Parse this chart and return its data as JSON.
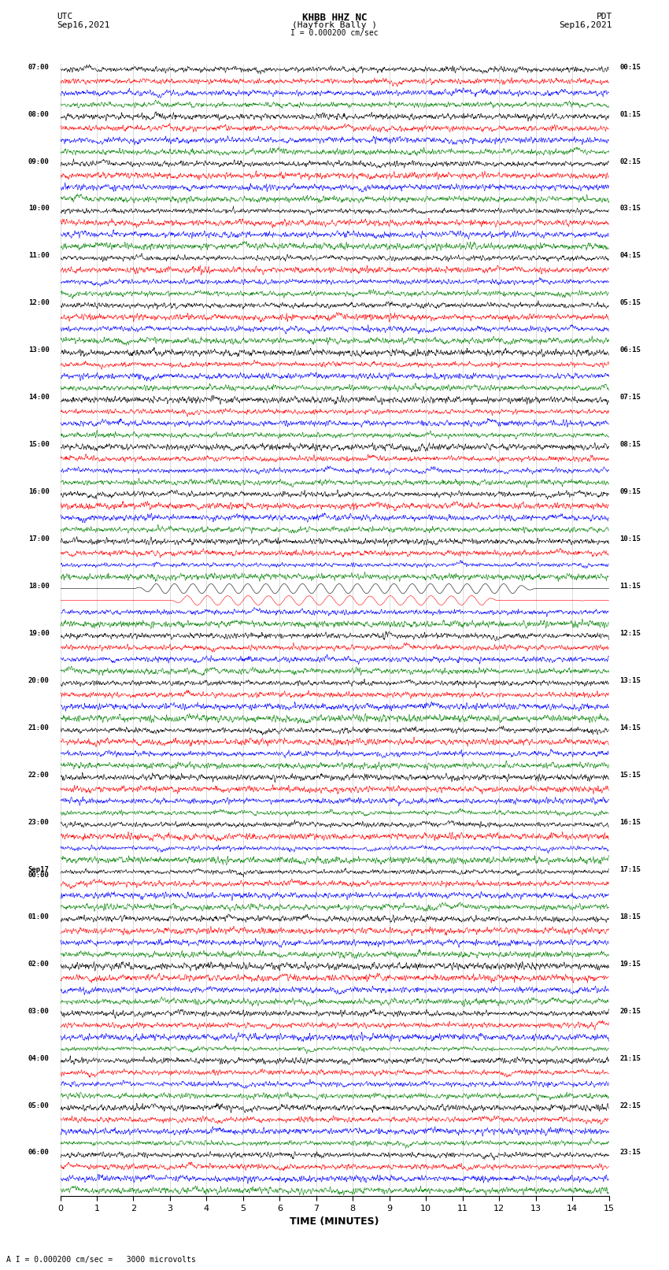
{
  "title_line1": "KHBB HHZ NC",
  "title_line2": "(Hayfork Bally )",
  "scale_label": "I = 0.000200 cm/sec",
  "left_timezone": "UTC",
  "left_date": "Sep16,2021",
  "right_timezone": "PDT",
  "right_date": "Sep16,2021",
  "bottom_label": "TIME (MINUTES)",
  "bottom_note": "A I = 0.000200 cm/sec =   3000 microvolts",
  "xlim": [
    0,
    15
  ],
  "xticks": [
    0,
    1,
    2,
    3,
    4,
    5,
    6,
    7,
    8,
    9,
    10,
    11,
    12,
    13,
    14,
    15
  ],
  "figure_width": 8.5,
  "figure_height": 16.13,
  "dpi": 100,
  "bg_color": "#ffffff",
  "trace_colors": [
    "black",
    "red",
    "blue",
    "green"
  ],
  "num_hour_blocks": 24,
  "traces_per_block": 4,
  "utc_labels": [
    "07:00",
    "08:00",
    "09:00",
    "10:00",
    "11:00",
    "12:00",
    "13:00",
    "14:00",
    "15:00",
    "16:00",
    "17:00",
    "18:00",
    "19:00",
    "20:00",
    "21:00",
    "22:00",
    "23:00",
    "Sep17\n00:00",
    "01:00",
    "02:00",
    "03:00",
    "04:00",
    "05:00",
    "06:00"
  ],
  "pdt_labels": [
    "00:15",
    "01:15",
    "02:15",
    "03:15",
    "04:15",
    "05:15",
    "06:15",
    "07:15",
    "08:15",
    "09:15",
    "10:15",
    "11:15",
    "12:15",
    "13:15",
    "14:15",
    "15:15",
    "16:15",
    "17:15",
    "18:15",
    "19:15",
    "20:15",
    "21:15",
    "22:15",
    "23:15"
  ],
  "special_block": 11,
  "noise_amplitude": 0.018,
  "special_freq": 2.0
}
